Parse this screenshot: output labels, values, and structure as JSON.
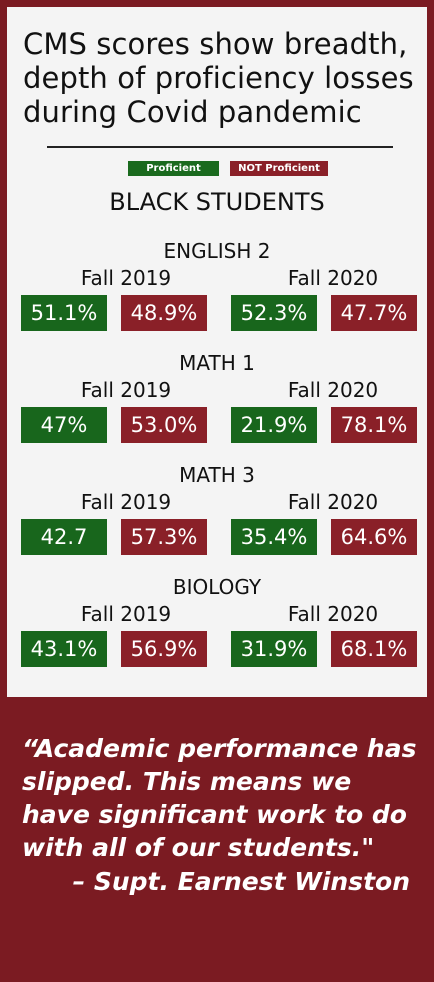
{
  "headline": "CMS scores show breadth, depth of proficiency losses during Covid pandemic",
  "colors": {
    "proficient": "#18661c",
    "not_proficient": "#8a2028",
    "frame": "#7b1b22"
  },
  "chart_data": {
    "type": "table",
    "title": "CMS scores show breadth, depth of proficiency losses during Covid pandemic",
    "subtitle": "BLACK STUDENTS",
    "legend": [
      "Proficient",
      "NOT Proficient"
    ],
    "columns": [
      "Fall 2019",
      "Fall 2020"
    ],
    "subjects": [
      {
        "name": "ENGLISH 2",
        "fall2019": {
          "proficient": "51.1%",
          "not_proficient": "48.9%"
        },
        "fall2020": {
          "proficient": "52.3%",
          "not_proficient": "47.7%"
        }
      },
      {
        "name": "MATH 1",
        "fall2019": {
          "proficient": "47%",
          "not_proficient": "53.0%"
        },
        "fall2020": {
          "proficient": "21.9%",
          "not_proficient": "78.1%"
        }
      },
      {
        "name": "MATH 3",
        "fall2019": {
          "proficient": "42.7",
          "not_proficient": "57.3%"
        },
        "fall2020": {
          "proficient": "35.4%",
          "not_proficient": "64.6%"
        }
      },
      {
        "name": "BIOLOGY",
        "fall2019": {
          "proficient": "43.1%",
          "not_proficient": "56.9%"
        },
        "fall2020": {
          "proficient": "31.9%",
          "not_proficient": "68.1%"
        }
      }
    ]
  },
  "quote": {
    "text": "“Academic performance has slipped. This means we have significant work to do with all of our students.\"",
    "attribution": "– Supt. Earnest Winston"
  }
}
